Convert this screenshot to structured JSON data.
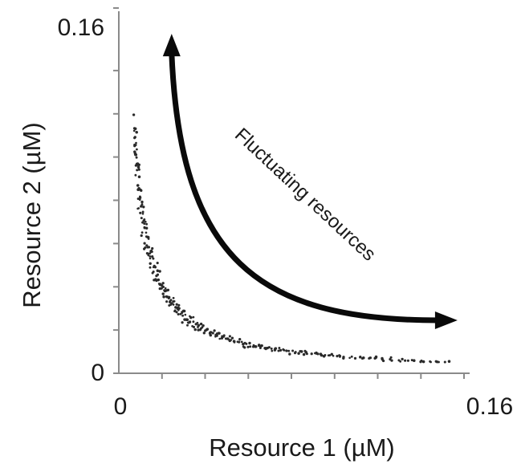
{
  "chart_data": {
    "type": "scatter",
    "xlabel": "Resource 1 (µM)",
    "ylabel": "Resource 2 (µM)",
    "xlim": [
      0,
      0.16
    ],
    "ylim": [
      0,
      0.16
    ],
    "x_ticks": [
      "0",
      "0.16"
    ],
    "y_ticks": [
      "0",
      "0.16"
    ],
    "annotation": "Fluctuating resources",
    "grid": false,
    "trade_off_curve": {
      "relationship": "x*y = constant",
      "product": 0.0008,
      "x_range": [
        0.007,
        0.152
      ],
      "points": 320,
      "spread": 0.06
    },
    "arrow": {
      "start": [
        0.0245,
        0.1555
      ],
      "end": [
        0.1555,
        0.0245
      ],
      "double_headed": true
    },
    "dot_color": "#2a2a2a",
    "arrow_color": "#0a0a0a"
  }
}
